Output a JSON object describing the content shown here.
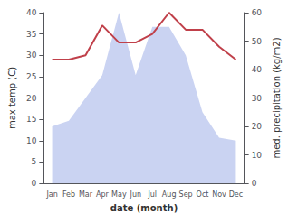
{
  "chart_data": {
    "type": "line",
    "categories": [
      "Jan",
      "Feb",
      "Mar",
      "Apr",
      "May",
      "Jun",
      "Jul",
      "Aug",
      "Sep",
      "Oct",
      "Nov",
      "Dec"
    ],
    "series": [
      {
        "type": "area",
        "axis": "y2",
        "color": "#b8c4ee",
        "values": [
          20,
          22,
          30,
          38,
          60,
          38,
          55,
          55,
          45,
          25,
          16,
          15
        ]
      },
      {
        "type": "line",
        "axis": "y",
        "color": "#c0404a",
        "values": [
          29,
          29,
          30,
          37,
          33,
          33,
          35,
          40,
          36,
          36,
          32,
          29
        ]
      }
    ],
    "xlabel": "date (month)",
    "ylabel": "max temp (C)",
    "y2label": "med. precipitation (kg/m2)",
    "ylim": [
      0,
      40
    ],
    "yticks": [
      0,
      5,
      10,
      15,
      20,
      25,
      30,
      35,
      40
    ],
    "y2lim": [
      0,
      60
    ],
    "y2ticks": [
      0,
      10,
      20,
      30,
      40,
      50,
      60
    ],
    "grid": false
  }
}
